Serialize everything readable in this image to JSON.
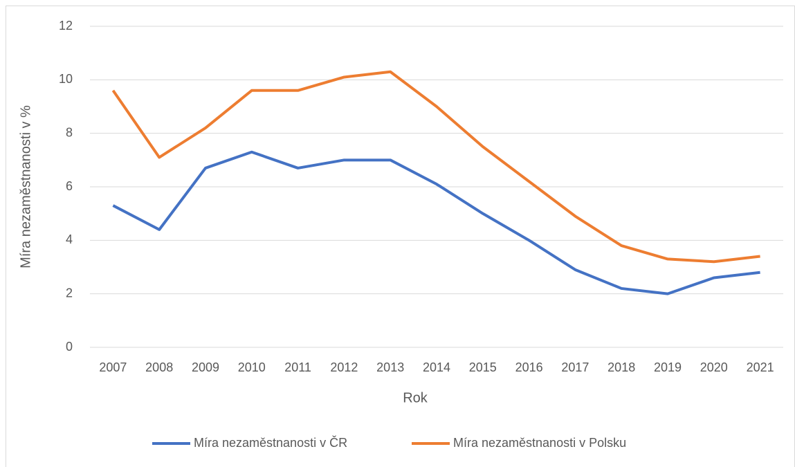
{
  "chart_data": {
    "type": "line",
    "x_label": "Rok",
    "y_label": "Míra nezaměstnanosti v %",
    "categories": [
      "2007",
      "2008",
      "2009",
      "2010",
      "2011",
      "2012",
      "2013",
      "2014",
      "2015",
      "2016",
      "2017",
      "2018",
      "2019",
      "2020",
      "2021"
    ],
    "series": [
      {
        "name": "Míra nezaměstnanosti v ČR",
        "color": "#4472c4",
        "values": [
          5.3,
          4.4,
          6.7,
          7.3,
          6.7,
          7.0,
          7.0,
          6.1,
          5.0,
          4.0,
          2.9,
          2.2,
          2.0,
          2.6,
          2.8
        ]
      },
      {
        "name": "Míra nezaměstnanosti v Polsku",
        "color": "#ed7d31",
        "values": [
          9.6,
          7.1,
          8.2,
          9.6,
          9.6,
          10.1,
          10.3,
          9.0,
          7.5,
          6.2,
          4.9,
          3.8,
          3.3,
          3.2,
          3.4
        ]
      }
    ],
    "ylim": [
      0,
      12
    ],
    "yticks": [
      0,
      2,
      4,
      6,
      8,
      10,
      12
    ],
    "grid": true,
    "legend": "bottom"
  }
}
